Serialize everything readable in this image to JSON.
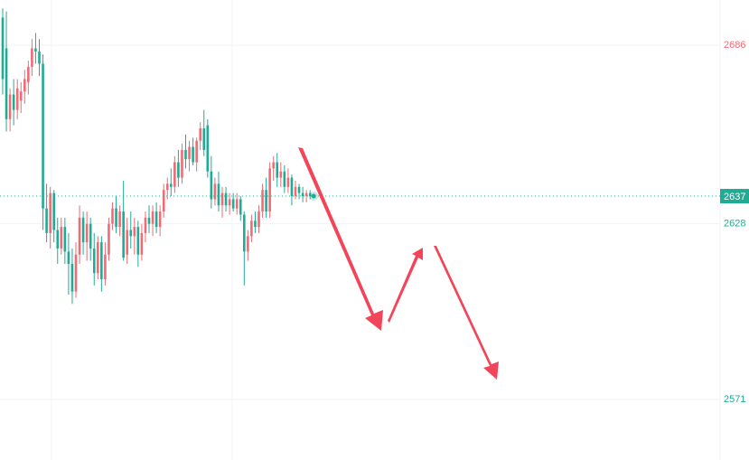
{
  "chart_data": {
    "type": "candlestick",
    "up_color": "#ef6b76",
    "down_color": "#22ab94",
    "ylim": [
      2551.3,
      2700.7
    ],
    "yticks": [
      2686,
      2628,
      2571
    ],
    "grid": true,
    "last_price": 2637,
    "open": [
      2695,
      2685,
      2662,
      2670,
      2665,
      2668,
      2671,
      2674,
      2679,
      2685,
      2684,
      2680,
      2633,
      2625,
      2638,
      2626,
      2620,
      2627,
      2619,
      2615,
      2606,
      2618,
      2630,
      2622,
      2628,
      2620,
      2612,
      2622,
      2610,
      2618,
      2628,
      2633,
      2627,
      2632,
      2618,
      2626,
      2624,
      2627,
      2618,
      2625,
      2630,
      2628,
      2632,
      2627,
      2632,
      2639,
      2641,
      2640,
      2648,
      2643,
      2652,
      2649,
      2653,
      2648,
      2655,
      2659,
      2660,
      2645,
      2636,
      2641,
      2634,
      2638,
      2634,
      2636,
      2633,
      2636,
      2631,
      2619,
      2624,
      2629,
      2627,
      2632,
      2639,
      2632,
      2646,
      2648,
      2643,
      2645,
      2640,
      2643,
      2637,
      2640,
      2638,
      2637,
      2638
    ],
    "high": [
      2698,
      2697,
      2672,
      2675,
      2675,
      2674,
      2678,
      2681,
      2688,
      2690,
      2688,
      2683,
      2641,
      2640,
      2639,
      2630,
      2630,
      2630,
      2625,
      2620,
      2622,
      2634,
      2632,
      2632,
      2630,
      2625,
      2624,
      2624,
      2622,
      2630,
      2635,
      2637,
      2634,
      2642,
      2630,
      2632,
      2630,
      2629,
      2628,
      2632,
      2634,
      2634,
      2635,
      2634,
      2641,
      2643,
      2646,
      2650,
      2652,
      2654,
      2657,
      2655,
      2656,
      2656,
      2661,
      2665,
      2662,
      2650,
      2643,
      2645,
      2640,
      2640,
      2638,
      2638,
      2638,
      2637,
      2632,
      2626,
      2631,
      2632,
      2634,
      2641,
      2643,
      2648,
      2650,
      2651,
      2648,
      2647,
      2646,
      2644,
      2642,
      2641,
      2640,
      2639,
      2639
    ],
    "low": [
      2670,
      2658,
      2658,
      2660,
      2662,
      2664,
      2667,
      2670,
      2676,
      2680,
      2676,
      2626,
      2622,
      2620,
      2622,
      2615,
      2618,
      2615,
      2605,
      2602,
      2604,
      2615,
      2618,
      2616,
      2616,
      2608,
      2610,
      2606,
      2608,
      2616,
      2626,
      2625,
      2624,
      2616,
      2615,
      2620,
      2618,
      2614,
      2616,
      2622,
      2625,
      2624,
      2625,
      2624,
      2630,
      2636,
      2637,
      2638,
      2640,
      2641,
      2646,
      2645,
      2647,
      2645,
      2652,
      2650,
      2643,
      2633,
      2634,
      2632,
      2630,
      2632,
      2631,
      2632,
      2631,
      2629,
      2608,
      2616,
      2622,
      2625,
      2625,
      2630,
      2630,
      2630,
      2642,
      2640,
      2640,
      2638,
      2638,
      2634,
      2636,
      2636,
      2635,
      2635,
      2636
    ],
    "close": [
      2675,
      2662,
      2670,
      2665,
      2672,
      2671,
      2675,
      2679,
      2685,
      2684,
      2680,
      2633,
      2625,
      2638,
      2626,
      2620,
      2627,
      2619,
      2615,
      2606,
      2618,
      2630,
      2622,
      2628,
      2620,
      2612,
      2622,
      2610,
      2618,
      2628,
      2633,
      2627,
      2632,
      2617,
      2626,
      2624,
      2627,
      2618,
      2625,
      2630,
      2628,
      2632,
      2627,
      2632,
      2639,
      2641,
      2640,
      2648,
      2643,
      2652,
      2649,
      2653,
      2648,
      2655,
      2659,
      2652,
      2645,
      2636,
      2641,
      2634,
      2638,
      2634,
      2636,
      2633,
      2636,
      2631,
      2619,
      2624,
      2629,
      2627,
      2632,
      2639,
      2632,
      2646,
      2648,
      2643,
      2645,
      2640,
      2643,
      2637,
      2640,
      2638,
      2637,
      2638,
      2637
    ]
  }
}
